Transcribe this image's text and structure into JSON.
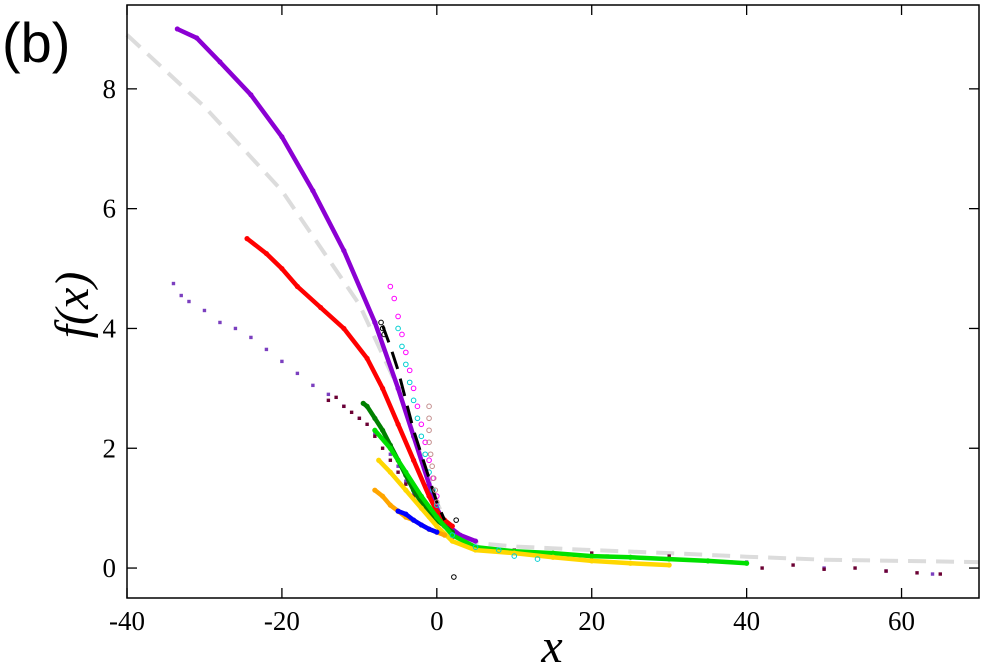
{
  "chart_data": {
    "type": "scatter",
    "panel_label": "(b)",
    "xlabel": "x",
    "ylabel": "f(x)",
    "xlim": [
      -40,
      70
    ],
    "ylim": [
      -0.5,
      9.4
    ],
    "xticks": [
      -40,
      -20,
      0,
      20,
      40,
      60
    ],
    "yticks": [
      0,
      2,
      4,
      6,
      8
    ],
    "grid": false,
    "legend": "none",
    "series": [
      {
        "color": "#dcdcdc",
        "style": "dashed-line",
        "points": [
          [
            -40,
            8.9
          ],
          [
            -30,
            7.7
          ],
          [
            -20,
            6.3
          ],
          [
            -10,
            4.4
          ],
          [
            -5,
            3.0
          ],
          [
            0,
            1.1
          ],
          [
            2,
            0.55
          ],
          [
            5,
            0.42
          ],
          [
            10,
            0.36
          ],
          [
            20,
            0.3
          ],
          [
            30,
            0.25
          ],
          [
            40,
            0.19
          ],
          [
            50,
            0.14
          ],
          [
            60,
            0.12
          ],
          [
            70,
            0.1
          ]
        ]
      },
      {
        "color": "#8b00d3",
        "style": "dense-line",
        "points": [
          [
            -33.5,
            9.0
          ],
          [
            -31,
            8.85
          ],
          [
            -28,
            8.45
          ],
          [
            -24,
            7.9
          ],
          [
            -20,
            7.2
          ],
          [
            -16,
            6.3
          ],
          [
            -12,
            5.3
          ],
          [
            -8,
            4.1
          ],
          [
            -5,
            3.0
          ],
          [
            -3,
            2.2
          ],
          [
            -1,
            1.4
          ],
          [
            0,
            1.0
          ],
          [
            1,
            0.75
          ],
          [
            3,
            0.55
          ],
          [
            5,
            0.45
          ]
        ]
      },
      {
        "color": "#ff0000",
        "style": "dense-line",
        "points": [
          [
            -24.5,
            5.5
          ],
          [
            -22,
            5.25
          ],
          [
            -20,
            5.0
          ],
          [
            -18,
            4.7
          ],
          [
            -15,
            4.35
          ],
          [
            -12,
            4.0
          ],
          [
            -9,
            3.5
          ],
          [
            -7,
            3.0
          ],
          [
            -5,
            2.4
          ],
          [
            -3,
            1.8
          ],
          [
            -1,
            1.2
          ],
          [
            0,
            0.95
          ],
          [
            1,
            0.8
          ],
          [
            2,
            0.7
          ]
        ]
      },
      {
        "color": "#7b3fbf",
        "style": "scatter",
        "points": [
          [
            -34,
            4.75
          ],
          [
            -33,
            4.55
          ],
          [
            -32,
            4.45
          ],
          [
            -30,
            4.3
          ],
          [
            -28,
            4.1
          ],
          [
            -26,
            4.0
          ],
          [
            -24,
            3.85
          ],
          [
            -22,
            3.65
          ],
          [
            -20,
            3.45
          ],
          [
            -18,
            3.25
          ],
          [
            -16,
            3.05
          ],
          [
            -14,
            2.9
          ],
          [
            -12,
            2.7
          ],
          [
            -10,
            2.5
          ],
          [
            -8,
            2.25
          ],
          [
            -6,
            1.9
          ],
          [
            -5,
            1.7
          ],
          [
            -4,
            1.45
          ],
          [
            -3,
            1.25
          ],
          [
            -2,
            1.0
          ],
          [
            -1,
            0.85
          ],
          [
            0,
            0.75
          ],
          [
            1,
            0.7
          ],
          [
            2,
            0.5
          ],
          [
            4,
            0.35
          ],
          [
            8,
            0.3
          ],
          [
            14,
            0.25
          ],
          [
            22,
            0.2
          ],
          [
            30,
            0.15
          ],
          [
            40,
            0.1
          ],
          [
            50,
            0.0
          ],
          [
            58,
            -0.05
          ],
          [
            64,
            -0.1
          ]
        ]
      },
      {
        "color": "#6b0033",
        "style": "scatter",
        "points": [
          [
            -14,
            2.8
          ],
          [
            -13,
            2.85
          ],
          [
            -12,
            2.7
          ],
          [
            -11,
            2.6
          ],
          [
            -10,
            2.5
          ],
          [
            -9,
            2.4
          ],
          [
            -8,
            2.2
          ],
          [
            -7,
            2.0
          ],
          [
            -6,
            1.8
          ],
          [
            -5,
            1.6
          ],
          [
            -4,
            1.4
          ],
          [
            -3,
            1.2
          ],
          [
            -2,
            1.0
          ],
          [
            10,
            0.3
          ],
          [
            20,
            0.25
          ],
          [
            30,
            0.2
          ],
          [
            38,
            0.1
          ],
          [
            42,
            0.0
          ],
          [
            46,
            0.05
          ],
          [
            50,
            -0.02
          ],
          [
            54,
            0.0
          ],
          [
            58,
            -0.05
          ],
          [
            62,
            -0.08
          ],
          [
            65,
            -0.1
          ]
        ]
      },
      {
        "color": "#008000",
        "style": "dense-line",
        "points": [
          [
            -9.5,
            2.75
          ],
          [
            -9,
            2.7
          ],
          [
            -8,
            2.5
          ],
          [
            -7,
            2.3
          ],
          [
            -6,
            2.05
          ],
          [
            -5,
            1.8
          ],
          [
            -4,
            1.55
          ],
          [
            -3,
            1.3
          ],
          [
            -2,
            1.1
          ],
          [
            -1,
            0.9
          ],
          [
            0,
            0.8
          ],
          [
            1,
            0.7
          ],
          [
            2,
            0.6
          ]
        ]
      },
      {
        "color": "#00e000",
        "style": "dense-line",
        "points": [
          [
            -8,
            2.3
          ],
          [
            -6,
            2.0
          ],
          [
            -4,
            1.6
          ],
          [
            -2,
            1.2
          ],
          [
            0,
            0.85
          ],
          [
            2,
            0.55
          ],
          [
            5,
            0.35
          ],
          [
            10,
            0.28
          ],
          [
            15,
            0.25
          ],
          [
            20,
            0.2
          ],
          [
            25,
            0.18
          ],
          [
            30,
            0.15
          ],
          [
            35,
            0.12
          ],
          [
            40,
            0.08
          ]
        ]
      },
      {
        "color": "#ffd700",
        "style": "dense-line",
        "points": [
          [
            -7.5,
            1.8
          ],
          [
            -6,
            1.6
          ],
          [
            -4,
            1.3
          ],
          [
            -2,
            1.0
          ],
          [
            0,
            0.7
          ],
          [
            2,
            0.45
          ],
          [
            5,
            0.3
          ],
          [
            10,
            0.25
          ],
          [
            15,
            0.18
          ],
          [
            20,
            0.12
          ],
          [
            25,
            0.08
          ],
          [
            30,
            0.05
          ]
        ]
      },
      {
        "color": "#ffa500",
        "style": "dense-line",
        "points": [
          [
            -8,
            1.3
          ],
          [
            -7,
            1.2
          ],
          [
            -6,
            1.05
          ],
          [
            -5,
            0.95
          ],
          [
            -4,
            0.85
          ],
          [
            -3,
            0.8
          ],
          [
            -2,
            0.72
          ],
          [
            -1,
            0.65
          ],
          [
            0,
            0.6
          ],
          [
            1,
            0.55
          ]
        ]
      },
      {
        "color": "#0000ff",
        "style": "dense-line",
        "points": [
          [
            -5,
            0.95
          ],
          [
            -4,
            0.9
          ],
          [
            -3,
            0.8
          ],
          [
            -2,
            0.72
          ],
          [
            -1,
            0.65
          ],
          [
            0,
            0.6
          ]
        ]
      },
      {
        "color": "#ff00ff",
        "style": "open-circles",
        "points": [
          [
            -6,
            4.7
          ],
          [
            -5.5,
            4.5
          ],
          [
            -5,
            4.2
          ],
          [
            -4.5,
            3.9
          ],
          [
            -4,
            3.6
          ],
          [
            -3.5,
            3.3
          ],
          [
            -3,
            3.0
          ],
          [
            -2.5,
            2.7
          ],
          [
            -2,
            2.4
          ],
          [
            -1.5,
            2.1
          ],
          [
            -1,
            1.8
          ],
          [
            -0.5,
            1.5
          ],
          [
            0,
            1.2
          ]
        ]
      },
      {
        "color": "#00ced1",
        "style": "open-circles",
        "points": [
          [
            -5,
            4.0
          ],
          [
            -4.5,
            3.7
          ],
          [
            -4,
            3.4
          ],
          [
            -3.5,
            3.1
          ],
          [
            -3,
            2.8
          ],
          [
            -2.5,
            2.5
          ],
          [
            -2,
            2.2
          ],
          [
            -1.5,
            1.9
          ],
          [
            -1,
            1.6
          ],
          [
            -0.5,
            1.3
          ],
          [
            0,
            1.05
          ],
          [
            2,
            0.55
          ],
          [
            5,
            0.35
          ],
          [
            8,
            0.3
          ],
          [
            10,
            0.2
          ],
          [
            13,
            0.15
          ]
        ]
      },
      {
        "color": "#000000",
        "style": "dashed-line",
        "points": [
          [
            -7,
            4.05
          ],
          [
            -6,
            3.7
          ],
          [
            -5,
            3.3
          ],
          [
            -4,
            2.8
          ],
          [
            -3,
            2.3
          ],
          [
            -2,
            1.9
          ],
          [
            -1,
            1.5
          ],
          [
            0,
            1.1
          ],
          [
            1,
            0.8
          ]
        ]
      },
      {
        "color": "#000000",
        "style": "open-circles",
        "points": [
          [
            -7.2,
            4.1
          ],
          [
            -7,
            4.0
          ],
          [
            -6.8,
            3.9
          ],
          [
            2.5,
            0.8
          ],
          [
            2.2,
            -0.15
          ]
        ]
      },
      {
        "color": "#c48e8e",
        "style": "open-circles",
        "points": [
          [
            -1,
            2.7
          ],
          [
            -1,
            2.5
          ],
          [
            -1,
            2.3
          ],
          [
            -1,
            2.1
          ],
          [
            -0.8,
            1.9
          ],
          [
            -0.6,
            1.7
          ],
          [
            -0.4,
            1.5
          ],
          [
            -0.2,
            1.3
          ],
          [
            0,
            1.1
          ]
        ]
      }
    ]
  }
}
